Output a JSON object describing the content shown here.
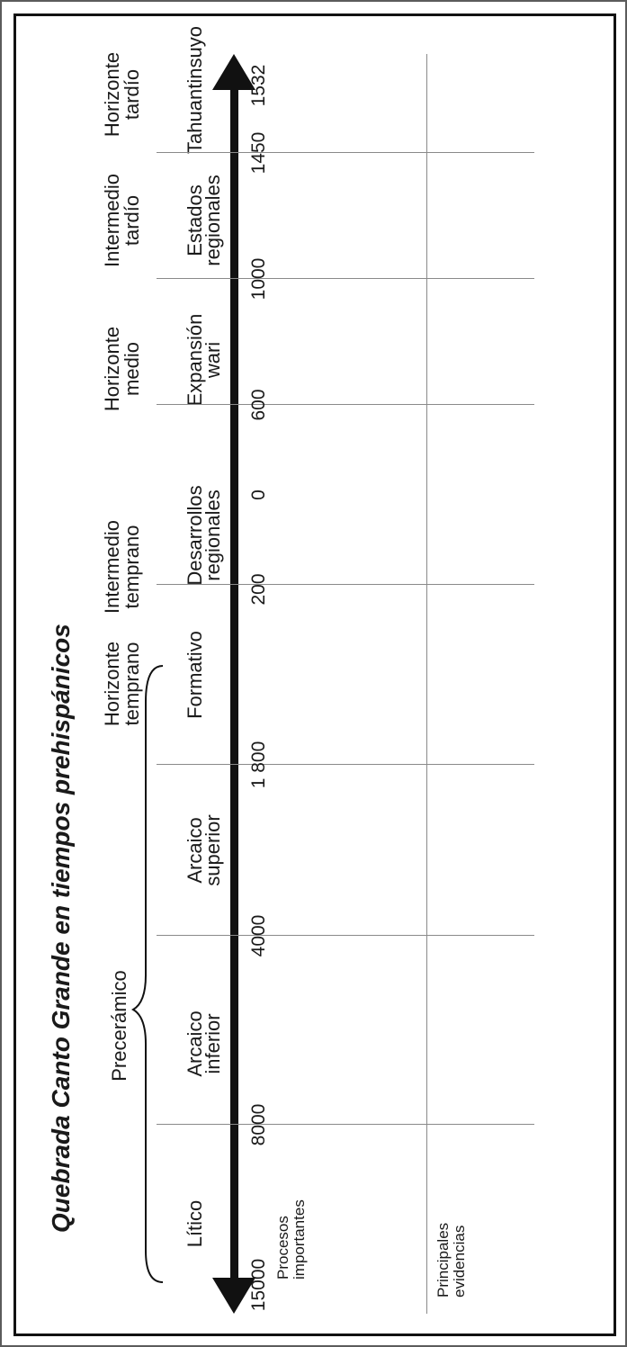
{
  "title": "Quebrada Canto Grande en tiempos prehispánicos",
  "group_label": "Precerámico",
  "periods": [
    {
      "l1": "Horizonte",
      "l2": "temprano"
    },
    {
      "l1": "Intermedio",
      "l2": "temprano"
    },
    {
      "l1": "Horizonte",
      "l2": "medio"
    },
    {
      "l1": "Intermedio",
      "l2": "tardío"
    },
    {
      "l1": "Horizonte",
      "l2": "tardío"
    }
  ],
  "phases": [
    {
      "l1": "Lítico",
      "l2": ""
    },
    {
      "l1": "Arcaico",
      "l2": "inferior"
    },
    {
      "l1": "Arcaico",
      "l2": "superior"
    },
    {
      "l1": "Formativo",
      "l2": ""
    },
    {
      "l1": "Desarrollos",
      "l2": "regionales"
    },
    {
      "l1": "Expansión",
      "l2": "wari"
    },
    {
      "l1": "Estados",
      "l2": "regionales"
    },
    {
      "l1": "Tahuantinsuyo",
      "l2": ""
    }
  ],
  "dates": [
    "15000",
    "8000",
    "4000",
    "1 800",
    "200",
    "0",
    "600",
    "1000",
    "1450",
    "1532"
  ],
  "rows": [
    {
      "l1": "Procesos",
      "l2": "importantes"
    },
    {
      "l1": "Principales",
      "l2": "evidencias"
    }
  ]
}
